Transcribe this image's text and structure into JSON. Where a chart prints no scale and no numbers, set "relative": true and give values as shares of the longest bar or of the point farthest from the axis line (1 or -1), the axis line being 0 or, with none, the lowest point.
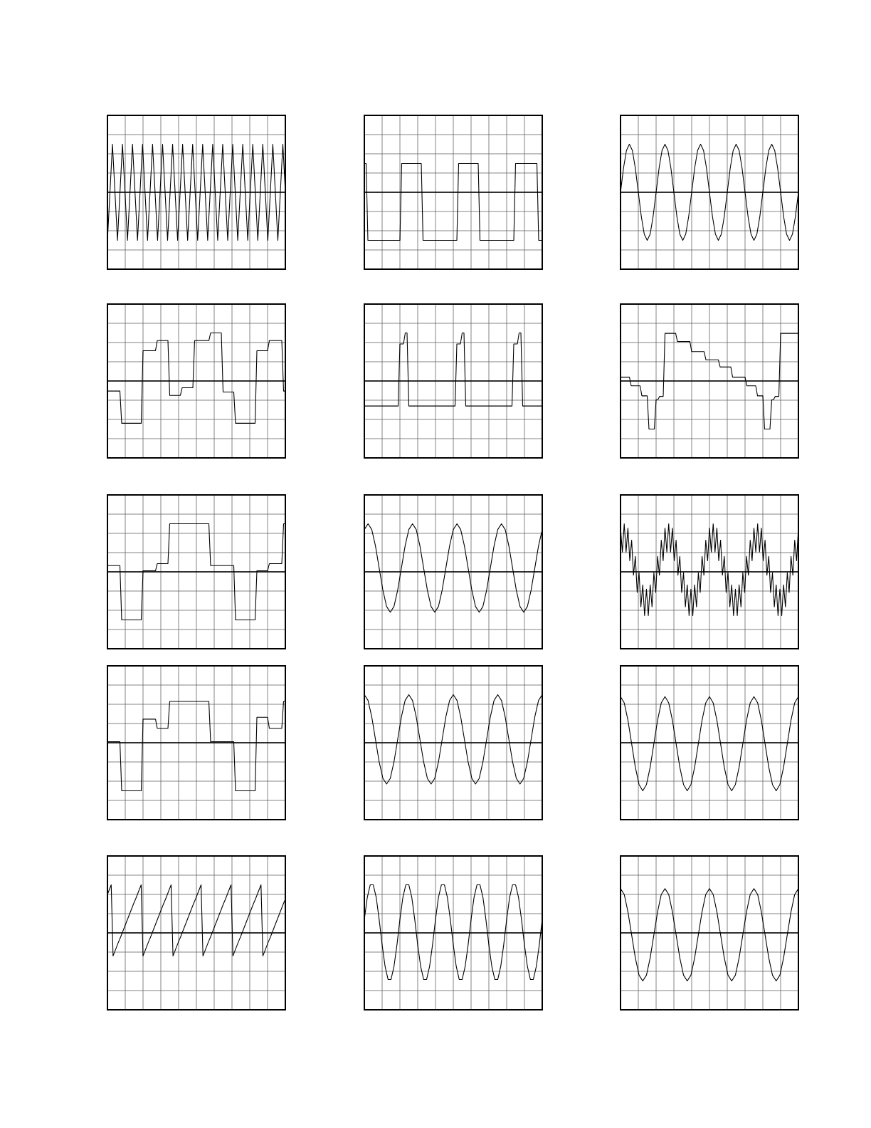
{
  "chart_data": [
    {
      "type": "line",
      "relative": true,
      "grid": true,
      "color": "#000000",
      "categories": [
        null,
        null,
        null,
        null,
        null,
        null,
        null,
        null,
        null,
        null,
        null,
        null,
        null,
        null,
        null,
        null,
        null,
        null,
        null,
        null,
        null,
        null,
        null,
        null,
        null,
        null,
        null,
        null,
        null,
        null,
        null,
        null,
        null,
        null,
        null,
        null,
        null,
        null,
        null,
        null,
        null,
        null,
        null,
        null,
        null,
        null,
        null,
        null,
        null,
        null,
        null,
        null,
        null,
        null,
        null,
        null,
        null,
        null,
        null,
        null,
        null,
        null,
        null,
        null,
        null,
        null,
        null,
        null,
        null,
        null,
        null,
        null
      ],
      "values": [
        -1,
        0,
        1,
        0,
        -1,
        0,
        1,
        0,
        -1,
        0,
        1,
        0,
        -1,
        0,
        1,
        0,
        -1,
        0,
        1,
        0,
        -1,
        0,
        1,
        0,
        -1,
        0,
        1,
        0,
        -1,
        0,
        1,
        0,
        -1,
        0,
        1,
        0,
        -1,
        0,
        1,
        0,
        -1,
        0,
        1,
        0,
        -1,
        0,
        1,
        0,
        -1,
        0,
        1,
        0,
        -1,
        0,
        1,
        0,
        -1,
        0,
        1,
        0,
        -1,
        0,
        1,
        0,
        -1,
        0,
        1,
        0,
        -1,
        0,
        1,
        0
      ]
    },
    {
      "type": "line",
      "relative": true,
      "grid": true,
      "color": "#000000",
      "categories": [
        null,
        null,
        null,
        null,
        null,
        null,
        null,
        null,
        null,
        null,
        null,
        null,
        null,
        null,
        null,
        null,
        null,
        null,
        null,
        null,
        null,
        null,
        null,
        null,
        null,
        null,
        null,
        null,
        null,
        null,
        null,
        null,
        null,
        null,
        null,
        null,
        null,
        null,
        null,
        null,
        null,
        null,
        null,
        null,
        null,
        null,
        null,
        null,
        null,
        null,
        null,
        null,
        null,
        null,
        null,
        null,
        null,
        null,
        null,
        null,
        null,
        null,
        null,
        null,
        null,
        null,
        null,
        null,
        null,
        null,
        null,
        null,
        null,
        null,
        null,
        null,
        null,
        null,
        null,
        null,
        null,
        null,
        null,
        null,
        null,
        null,
        null,
        null,
        null,
        null,
        null,
        null,
        null,
        null,
        null,
        null,
        null,
        null,
        null,
        null,
        null
      ],
      "values": [
        0.6,
        0.6,
        -1,
        -1,
        -1,
        -1,
        -1,
        -1,
        -1,
        -1,
        -1,
        -1,
        -1,
        -1,
        -1,
        -1,
        -1,
        -1,
        -1,
        -1,
        -1,
        0.6,
        0.6,
        0.6,
        0.6,
        0.6,
        0.6,
        0.6,
        0.6,
        0.6,
        0.6,
        0.6,
        0.6,
        -1,
        -1,
        -1,
        -1,
        -1,
        -1,
        -1,
        -1,
        -1,
        -1,
        -1,
        -1,
        -1,
        -1,
        -1,
        -1,
        -1,
        -1,
        -1,
        -1,
        0.6,
        0.6,
        0.6,
        0.6,
        0.6,
        0.6,
        0.6,
        0.6,
        0.6,
        0.6,
        0.6,
        0.6,
        -1,
        -1,
        -1,
        -1,
        -1,
        -1,
        -1,
        -1,
        -1,
        -1,
        -1,
        -1,
        -1,
        -1,
        -1,
        -1,
        -1,
        -1,
        -1,
        -1,
        0.6,
        0.6,
        0.6,
        0.6,
        0.6,
        0.6,
        0.6,
        0.6,
        0.6,
        0.6,
        0.6,
        0.6,
        0.6,
        -1,
        -1,
        -1
      ]
    },
    {
      "type": "line",
      "relative": true,
      "grid": true,
      "color": "#000000",
      "categories": [
        null,
        null,
        null,
        null,
        null,
        null,
        null,
        null,
        null,
        null,
        null,
        null,
        null,
        null,
        null,
        null,
        null,
        null,
        null,
        null,
        null,
        null,
        null,
        null,
        null,
        null,
        null,
        null,
        null,
        null,
        null,
        null,
        null,
        null,
        null,
        null,
        null,
        null,
        null,
        null,
        null,
        null,
        null,
        null,
        null,
        null,
        null,
        null,
        null,
        null,
        null,
        null,
        null,
        null,
        null,
        null,
        null,
        null,
        null,
        null,
        null
      ],
      "values": [
        0,
        0.5,
        0.87,
        1,
        0.87,
        0.5,
        0,
        -0.5,
        -0.87,
        -1,
        -0.87,
        -0.5,
        0,
        0.5,
        0.87,
        1,
        0.87,
        0.5,
        0,
        -0.5,
        -0.87,
        -1,
        -0.87,
        -0.5,
        0,
        0.5,
        0.87,
        1,
        0.87,
        0.5,
        0,
        -0.5,
        -0.87,
        -1,
        -0.87,
        -0.5,
        0,
        0.5,
        0.87,
        1,
        0.87,
        0.5,
        0,
        -0.5,
        -0.87,
        -1,
        -0.87,
        -0.5,
        0,
        0.5,
        0.87,
        1,
        0.87,
        0.5,
        0,
        -0.5,
        -0.87,
        -1,
        -0.87,
        -0.5,
        0
      ]
    },
    {
      "type": "line",
      "relative": true,
      "grid": true,
      "color": "#000000",
      "categories": [
        null,
        null,
        null,
        null,
        null,
        null,
        null,
        null,
        null,
        null,
        null,
        null,
        null,
        null,
        null,
        null,
        null,
        null,
        null,
        null,
        null,
        null,
        null,
        null,
        null,
        null,
        null,
        null,
        null,
        null,
        null,
        null,
        null,
        null,
        null,
        null,
        null,
        null,
        null,
        null,
        null,
        null,
        null,
        null,
        null,
        null,
        null,
        null,
        null,
        null,
        null,
        null,
        null,
        null,
        null,
        null,
        null,
        null,
        null,
        null,
        null,
        null,
        null,
        null,
        null,
        null,
        null,
        null,
        null,
        null,
        null,
        null,
        null,
        null,
        null,
        null,
        null,
        null,
        null,
        null,
        null,
        null,
        null,
        null,
        null,
        null,
        null,
        null,
        null,
        null,
        null,
        null,
        null,
        null,
        null,
        null,
        null,
        null,
        null,
        null,
        null
      ],
      "values": [
        -0.21,
        -0.21,
        -0.21,
        -0.21,
        -0.21,
        -0.21,
        -0.21,
        -0.21,
        -0.88,
        -0.88,
        -0.88,
        -0.88,
        -0.88,
        -0.88,
        -0.88,
        -0.88,
        -0.88,
        -0.88,
        -0.88,
        -0.88,
        0.63,
        0.63,
        0.63,
        0.63,
        0.63,
        0.63,
        0.63,
        0.63,
        0.84,
        0.84,
        0.84,
        0.84,
        0.84,
        0.84,
        0.84,
        -0.3,
        -0.3,
        -0.3,
        -0.3,
        -0.3,
        -0.3,
        -0.3,
        -0.14,
        -0.14,
        -0.14,
        -0.14,
        -0.14,
        -0.14,
        -0.14,
        0.84,
        0.84,
        0.84,
        0.84,
        0.84,
        0.84,
        0.84,
        0.84,
        0.84,
        1,
        1,
        1,
        1,
        1,
        1,
        1,
        -0.23,
        -0.23,
        -0.23,
        -0.23,
        -0.23,
        -0.23,
        -0.23,
        -0.88,
        -0.88,
        -0.88,
        -0.88,
        -0.88,
        -0.88,
        -0.88,
        -0.88,
        -0.88,
        -0.88,
        -0.88,
        -0.88,
        0.63,
        0.63,
        0.63,
        0.63,
        0.63,
        0.63,
        0.63,
        0.84,
        0.84,
        0.84,
        0.84,
        0.84,
        0.84,
        0.84,
        0.84,
        -0.21,
        -0.21
      ]
    },
    {
      "type": "line",
      "relative": true,
      "grid": true,
      "color": "#000000",
      "categories": [
        null,
        null,
        null,
        null,
        null,
        null,
        null,
        null,
        null,
        null,
        null,
        null,
        null,
        null,
        null,
        null,
        null,
        null,
        null,
        null,
        null,
        null,
        null,
        null,
        null,
        null,
        null,
        null,
        null,
        null,
        null,
        null,
        null,
        null,
        null,
        null,
        null,
        null,
        null,
        null,
        null,
        null,
        null,
        null,
        null,
        null,
        null,
        null,
        null,
        null,
        null,
        null,
        null,
        null,
        null,
        null,
        null,
        null,
        null,
        null,
        null,
        null,
        null,
        null,
        null,
        null,
        null,
        null,
        null,
        null,
        null,
        null,
        null,
        null,
        null,
        null,
        null,
        null,
        null,
        null,
        null,
        null,
        null,
        null,
        null,
        null,
        null,
        null,
        null,
        null,
        null,
        null,
        null,
        null,
        null,
        null,
        null,
        null,
        null,
        null,
        null
      ],
      "values": [
        -0.52,
        -0.52,
        -0.52,
        -0.52,
        -0.52,
        -0.52,
        -0.52,
        -0.52,
        -0.52,
        -0.52,
        -0.52,
        -0.52,
        -0.52,
        -0.52,
        -0.52,
        -0.52,
        -0.52,
        -0.52,
        -0.52,
        -0.52,
        0.77,
        0.77,
        0.77,
        1,
        1,
        -0.52,
        -0.52,
        -0.52,
        -0.52,
        -0.52,
        -0.52,
        -0.52,
        -0.52,
        -0.52,
        -0.52,
        -0.52,
        -0.52,
        -0.52,
        -0.52,
        -0.52,
        -0.52,
        -0.52,
        -0.52,
        -0.52,
        -0.52,
        -0.52,
        -0.52,
        -0.52,
        -0.52,
        -0.52,
        -0.52,
        -0.52,
        0.77,
        0.77,
        0.77,
        1,
        1,
        -0.52,
        -0.52,
        -0.52,
        -0.52,
        -0.52,
        -0.52,
        -0.52,
        -0.52,
        -0.52,
        -0.52,
        -0.52,
        -0.52,
        -0.52,
        -0.52,
        -0.52,
        -0.52,
        -0.52,
        -0.52,
        -0.52,
        -0.52,
        -0.52,
        -0.52,
        -0.52,
        -0.52,
        -0.52,
        -0.52,
        -0.52,
        0.77,
        0.77,
        0.77,
        1,
        1,
        -0.52,
        -0.52,
        -0.52,
        -0.52,
        -0.52,
        -0.52,
        -0.52,
        -0.52,
        -0.52,
        -0.52,
        -0.52,
        -0.52
      ]
    },
    {
      "type": "line",
      "relative": true,
      "grid": true,
      "color": "#000000",
      "categories": [
        null,
        null,
        null,
        null,
        null,
        null,
        null,
        null,
        null,
        null,
        null,
        null,
        null,
        null,
        null,
        null,
        null,
        null,
        null,
        null,
        null,
        null,
        null,
        null,
        null,
        null,
        null,
        null,
        null,
        null,
        null,
        null,
        null,
        null,
        null,
        null,
        null,
        null,
        null,
        null,
        null,
        null,
        null,
        null,
        null,
        null,
        null,
        null,
        null,
        null,
        null,
        null,
        null,
        null,
        null,
        null,
        null,
        null,
        null,
        null,
        null,
        null,
        null,
        null,
        null,
        null,
        null,
        null,
        null,
        null,
        null,
        null,
        null,
        null,
        null,
        null,
        null,
        null,
        null,
        null,
        null,
        null,
        null,
        null,
        null,
        null,
        null,
        null,
        null,
        null,
        null,
        null,
        null,
        null,
        null,
        null,
        null,
        null,
        null,
        null,
        null
      ],
      "values": [
        0.08,
        0.08,
        0.08,
        0.08,
        0.08,
        0.08,
        -0.1,
        -0.1,
        -0.1,
        -0.1,
        -0.1,
        -0.1,
        -0.31,
        -0.31,
        -0.31,
        -0.31,
        -1,
        -1,
        -1,
        -1,
        -0.39,
        -0.39,
        -0.32,
        -0.32,
        -0.32,
        0.99,
        0.99,
        0.99,
        0.99,
        0.99,
        0.99,
        0.99,
        0.82,
        0.82,
        0.82,
        0.82,
        0.82,
        0.82,
        0.82,
        0.82,
        0.61,
        0.61,
        0.61,
        0.61,
        0.61,
        0.61,
        0.61,
        0.61,
        0.44,
        0.44,
        0.44,
        0.44,
        0.44,
        0.44,
        0.44,
        0.44,
        0.29,
        0.29,
        0.29,
        0.29,
        0.29,
        0.29,
        0.29,
        0.08,
        0.08,
        0.08,
        0.08,
        0.08,
        0.08,
        0.08,
        0.08,
        -0.1,
        -0.1,
        -0.1,
        -0.1,
        -0.1,
        -0.1,
        -0.31,
        -0.31,
        -0.31,
        -0.31,
        -1,
        -1,
        -1,
        -1,
        -0.39,
        -0.39,
        -0.32,
        -0.32,
        -0.32,
        0.99,
        0.99,
        0.99,
        0.99,
        0.99,
        0.99,
        0.99,
        0.99,
        0.99,
        0.99,
        0.99
      ]
    },
    {
      "type": "line",
      "relative": true,
      "grid": true,
      "color": "#000000",
      "categories": [
        null,
        null,
        null,
        null,
        null,
        null,
        null,
        null,
        null,
        null,
        null,
        null,
        null,
        null,
        null,
        null,
        null,
        null,
        null,
        null,
        null,
        null,
        null,
        null,
        null,
        null,
        null,
        null,
        null,
        null,
        null,
        null,
        null,
        null,
        null,
        null,
        null,
        null,
        null,
        null,
        null,
        null,
        null,
        null,
        null,
        null,
        null,
        null,
        null,
        null,
        null,
        null,
        null,
        null,
        null,
        null,
        null,
        null,
        null,
        null,
        null,
        null,
        null,
        null,
        null,
        null,
        null,
        null,
        null,
        null,
        null,
        null,
        null,
        null,
        null,
        null,
        null,
        null,
        null,
        null,
        null,
        null,
        null,
        null,
        null,
        null,
        null,
        null,
        null,
        null,
        null,
        null,
        null,
        null,
        null,
        null,
        null,
        null,
        null,
        null,
        null
      ],
      "values": [
        0.13,
        0.13,
        0.13,
        0.13,
        0.13,
        0.13,
        0.13,
        0.13,
        -1,
        -1,
        -1,
        -1,
        -1,
        -1,
        -1,
        -1,
        -1,
        -1,
        -1,
        -1,
        0.02,
        0.02,
        0.02,
        0.02,
        0.02,
        0.02,
        0.02,
        0.02,
        0.17,
        0.17,
        0.17,
        0.17,
        0.17,
        0.17,
        0.17,
        1,
        1,
        1,
        1,
        1,
        1,
        1,
        1,
        1,
        1,
        1,
        1,
        1,
        1,
        1,
        1,
        1,
        1,
        1,
        1,
        1,
        1,
        1,
        0.13,
        0.13,
        0.13,
        0.13,
        0.13,
        0.13,
        0.13,
        0.13,
        0.13,
        0.13,
        0.13,
        0.13,
        0.13,
        0.13,
        -1,
        -1,
        -1,
        -1,
        -1,
        -1,
        -1,
        -1,
        -1,
        -1,
        -1,
        -1,
        0.02,
        0.02,
        0.02,
        0.02,
        0.02,
        0.02,
        0.02,
        0.17,
        0.17,
        0.17,
        0.17,
        0.17,
        0.17,
        0.17,
        0.17,
        1,
        1
      ]
    },
    {
      "type": "line",
      "relative": true,
      "grid": true,
      "color": "#000000",
      "categories": [
        null,
        null,
        null,
        null,
        null,
        null,
        null,
        null,
        null,
        null,
        null,
        null,
        null,
        null,
        null,
        null,
        null,
        null,
        null,
        null,
        null,
        null,
        null,
        null,
        null,
        null,
        null,
        null,
        null,
        null,
        null,
        null,
        null,
        null,
        null,
        null,
        null,
        null,
        null,
        null,
        null,
        null,
        null,
        null,
        null,
        null,
        null,
        null,
        null
      ],
      "values": [
        0.88,
        1,
        0.88,
        0.54,
        0.08,
        -0.38,
        -0.72,
        -0.84,
        -0.72,
        -0.38,
        0.08,
        0.54,
        0.88,
        1,
        0.88,
        0.54,
        0.08,
        -0.38,
        -0.72,
        -0.84,
        -0.72,
        -0.38,
        0.08,
        0.54,
        0.88,
        1,
        0.88,
        0.54,
        0.08,
        -0.38,
        -0.72,
        -0.84,
        -0.72,
        -0.38,
        0.08,
        0.54,
        0.88,
        1,
        0.88,
        0.54,
        0.08,
        -0.38,
        -0.72,
        -0.84,
        -0.72,
        -0.38,
        0.08,
        0.54,
        0.88
      ]
    },
    {
      "type": "line",
      "relative": true,
      "grid": true,
      "color": "#000000",
      "categories": [
        null,
        null,
        null,
        null,
        null,
        null,
        null,
        null,
        null,
        null,
        null,
        null,
        null,
        null,
        null,
        null,
        null,
        null,
        null,
        null,
        null,
        null,
        null,
        null,
        null,
        null,
        null,
        null,
        null,
        null,
        null,
        null,
        null,
        null,
        null,
        null,
        null,
        null,
        null,
        null,
        null,
        null,
        null,
        null,
        null,
        null,
        null,
        null,
        null,
        null,
        null,
        null,
        null,
        null,
        null,
        null,
        null,
        null,
        null,
        null,
        null,
        null,
        null,
        null,
        null,
        null,
        null,
        null,
        null,
        null,
        null,
        null,
        null,
        null,
        null,
        null,
        null,
        null,
        null,
        null,
        null,
        null,
        null,
        null,
        null,
        null,
        null,
        null,
        null,
        null,
        null,
        null,
        null,
        null,
        null,
        null,
        null
      ],
      "values": [
        0.91,
        0.41,
        1,
        0.41,
        0.91,
        0.23,
        0.66,
        -0.07,
        0.32,
        -0.43,
        -0.02,
        -0.73,
        -0.27,
        -0.91,
        -0.36,
        -0.91,
        -0.27,
        -0.73,
        -0.02,
        -0.43,
        0.32,
        -0.07,
        0.66,
        0.23,
        0.91,
        0.41,
        1,
        0.41,
        0.91,
        0.23,
        0.66,
        -0.07,
        0.32,
        -0.43,
        -0.02,
        -0.73,
        -0.27,
        -0.91,
        -0.36,
        -0.91,
        -0.27,
        -0.73,
        -0.02,
        -0.43,
        0.32,
        -0.07,
        0.66,
        0.23,
        0.91,
        0.41,
        1,
        0.41,
        0.91,
        0.23,
        0.66,
        -0.07,
        0.32,
        -0.43,
        -0.02,
        -0.73,
        -0.27,
        -0.91,
        -0.36,
        -0.91,
        -0.27,
        -0.73,
        -0.02,
        -0.43,
        0.32,
        -0.07,
        0.66,
        0.23,
        0.91,
        0.41,
        1,
        0.41,
        0.91,
        0.23,
        0.66,
        -0.07,
        0.32,
        -0.43,
        -0.02,
        -0.73,
        -0.27,
        -0.91,
        -0.36,
        -0.91,
        -0.27,
        -0.73,
        -0.02,
        -0.43,
        0.32,
        -0.07,
        0.66,
        0.23,
        0.91
      ]
    },
    {
      "type": "line",
      "relative": true,
      "grid": true,
      "color": "#000000",
      "categories": [
        null,
        null,
        null,
        null,
        null,
        null,
        null,
        null,
        null,
        null,
        null,
        null,
        null,
        null,
        null,
        null,
        null,
        null,
        null,
        null,
        null,
        null,
        null,
        null,
        null,
        null,
        null,
        null,
        null,
        null,
        null,
        null,
        null,
        null,
        null,
        null,
        null,
        null,
        null,
        null,
        null,
        null,
        null,
        null,
        null,
        null,
        null,
        null,
        null,
        null,
        null,
        null,
        null,
        null,
        null,
        null,
        null,
        null,
        null,
        null,
        null,
        null,
        null,
        null,
        null,
        null,
        null,
        null,
        null,
        null,
        null,
        null,
        null,
        null,
        null,
        null,
        null,
        null,
        null,
        null,
        null,
        null,
        null,
        null,
        null,
        null,
        null,
        null,
        null,
        null,
        null,
        null,
        null,
        null,
        null,
        null,
        null,
        null,
        null,
        null,
        null
      ],
      "values": [
        0.02,
        0.02,
        0.02,
        0.02,
        0.02,
        0.02,
        0.02,
        0.02,
        -1,
        -1,
        -1,
        -1,
        -1,
        -1,
        -1,
        -1,
        -1,
        -1,
        -1,
        -1,
        0.49,
        0.49,
        0.49,
        0.49,
        0.49,
        0.49,
        0.49,
        0.49,
        0.3,
        0.3,
        0.3,
        0.3,
        0.3,
        0.3,
        0.3,
        0.86,
        0.86,
        0.86,
        0.86,
        0.86,
        0.86,
        0.86,
        0.86,
        0.86,
        0.86,
        0.86,
        0.86,
        0.86,
        0.86,
        0.86,
        0.86,
        0.86,
        0.86,
        0.86,
        0.86,
        0.86,
        0.86,
        0.86,
        0.02,
        0.02,
        0.02,
        0.02,
        0.02,
        0.02,
        0.02,
        0.02,
        0.02,
        0.02,
        0.02,
        0.02,
        0.02,
        0.02,
        -1,
        -1,
        -1,
        -1,
        -1,
        -1,
        -1,
        -1,
        -1,
        -1,
        -1,
        -1,
        0.53,
        0.53,
        0.53,
        0.53,
        0.53,
        0.53,
        0.53,
        0.3,
        0.3,
        0.3,
        0.3,
        0.3,
        0.3,
        0.3,
        0.3,
        0.86,
        0.86
      ]
    },
    {
      "type": "line",
      "relative": true,
      "grid": true,
      "color": "#000000",
      "categories": [
        null,
        null,
        null,
        null,
        null,
        null,
        null,
        null,
        null,
        null,
        null,
        null,
        null,
        null,
        null,
        null,
        null,
        null,
        null,
        null,
        null,
        null,
        null,
        null,
        null,
        null,
        null,
        null,
        null,
        null,
        null,
        null,
        null,
        null,
        null,
        null,
        null,
        null,
        null,
        null,
        null,
        null,
        null,
        null,
        null,
        null,
        null,
        null,
        null
      ],
      "values": [
        1,
        0.88,
        0.54,
        0.07,
        -0.4,
        -0.74,
        -0.86,
        -0.74,
        -0.4,
        0.07,
        0.54,
        0.88,
        1,
        0.88,
        0.54,
        0.07,
        -0.4,
        -0.74,
        -0.86,
        -0.74,
        -0.4,
        0.07,
        0.54,
        0.88,
        1,
        0.88,
        0.54,
        0.07,
        -0.4,
        -0.74,
        -0.86,
        -0.74,
        -0.4,
        0.07,
        0.54,
        0.88,
        1,
        0.88,
        0.54,
        0.07,
        -0.4,
        -0.74,
        -0.86,
        -0.74,
        -0.4,
        0.07,
        0.54,
        0.88,
        1
      ]
    },
    {
      "type": "line",
      "relative": true,
      "grid": true,
      "color": "#000000",
      "categories": [
        null,
        null,
        null,
        null,
        null,
        null,
        null,
        null,
        null,
        null,
        null,
        null,
        null,
        null,
        null,
        null,
        null,
        null,
        null,
        null,
        null,
        null,
        null,
        null,
        null,
        null,
        null,
        null,
        null,
        null,
        null,
        null,
        null,
        null,
        null,
        null,
        null,
        null,
        null,
        null,
        null,
        null,
        null,
        null,
        null,
        null,
        null,
        null,
        null
      ],
      "values": [
        0.96,
        0.83,
        0.47,
        -0.02,
        -0.51,
        -0.87,
        -1,
        -0.87,
        -0.51,
        -0.02,
        0.47,
        0.83,
        0.96,
        0.83,
        0.47,
        -0.02,
        -0.51,
        -0.87,
        -1,
        -0.87,
        -0.51,
        -0.02,
        0.47,
        0.83,
        0.96,
        0.83,
        0.47,
        -0.02,
        -0.51,
        -0.87,
        -1,
        -0.87,
        -0.51,
        -0.02,
        0.47,
        0.83,
        0.96,
        0.83,
        0.47,
        -0.02,
        -0.51,
        -0.87,
        -1,
        -0.87,
        -0.51,
        -0.02,
        0.47,
        0.83,
        0.96
      ]
    },
    {
      "type": "line",
      "relative": true,
      "grid": true,
      "color": "#000000",
      "categories": [
        null,
        null,
        null,
        null,
        null,
        null,
        null,
        null,
        null,
        null,
        null,
        null,
        null,
        null,
        null,
        null,
        null,
        null,
        null,
        null,
        null,
        null,
        null,
        null,
        null,
        null,
        null,
        null,
        null,
        null,
        null,
        null,
        null,
        null,
        null,
        null,
        null,
        null,
        null,
        null,
        null,
        null,
        null,
        null,
        null,
        null,
        null,
        null,
        null,
        null,
        null,
        null,
        null,
        null,
        null,
        null,
        null,
        null,
        null,
        null,
        null,
        null,
        null,
        null,
        null,
        null,
        null,
        null,
        null,
        null,
        null,
        null,
        null,
        null,
        null,
        null,
        null,
        null,
        null,
        null,
        null,
        null,
        null,
        null,
        null,
        null,
        null,
        null,
        null,
        null,
        null,
        null,
        null,
        null,
        null,
        null
      ],
      "values": [
        0.8,
        0.9,
        1,
        -0.48,
        -0.38,
        -0.28,
        -0.18,
        -0.09,
        0.01,
        0.11,
        0.21,
        0.31,
        0.41,
        0.51,
        0.61,
        0.7,
        0.8,
        0.9,
        1,
        -0.48,
        -0.38,
        -0.28,
        -0.18,
        -0.09,
        0.01,
        0.11,
        0.21,
        0.31,
        0.41,
        0.51,
        0.61,
        0.7,
        0.8,
        0.9,
        1,
        -0.48,
        -0.38,
        -0.28,
        -0.18,
        -0.09,
        0.01,
        0.11,
        0.21,
        0.31,
        0.41,
        0.51,
        0.61,
        0.7,
        0.8,
        0.9,
        1,
        -0.48,
        -0.38,
        -0.28,
        -0.18,
        -0.09,
        0.01,
        0.11,
        0.21,
        0.31,
        0.41,
        0.51,
        0.61,
        0.7,
        0.8,
        0.9,
        1,
        -0.48,
        -0.38,
        -0.28,
        -0.18,
        -0.09,
        0.01,
        0.11,
        0.21,
        0.31,
        0.41,
        0.51,
        0.61,
        0.7,
        0.8,
        0.9,
        1,
        -0.48,
        -0.38,
        -0.28,
        -0.18,
        -0.09,
        0.01,
        0.11,
        0.21,
        0.31,
        0.41,
        0.51,
        0.61,
        0.7
      ]
    },
    {
      "type": "line",
      "relative": true,
      "grid": true,
      "color": "#000000",
      "categories": [
        null,
        null,
        null,
        null,
        null,
        null,
        null,
        null,
        null,
        null,
        null,
        null,
        null,
        null,
        null,
        null,
        null,
        null,
        null,
        null,
        null,
        null,
        null,
        null,
        null,
        null,
        null,
        null,
        null,
        null,
        null,
        null,
        null,
        null,
        null,
        null,
        null,
        null,
        null,
        null,
        null,
        null,
        null,
        null,
        null,
        null,
        null,
        null,
        null,
        null,
        null,
        null,
        null,
        null,
        null,
        null,
        null,
        null,
        null,
        null,
        null
      ],
      "values": [
        0.28,
        0.74,
        1,
        1,
        0.74,
        0.28,
        -0.25,
        -0.7,
        -0.97,
        -0.97,
        -0.7,
        -0.25,
        0.28,
        0.74,
        1,
        1,
        0.74,
        0.28,
        -0.25,
        -0.7,
        -0.97,
        -0.97,
        -0.7,
        -0.25,
        0.28,
        0.74,
        1,
        1,
        0.74,
        0.28,
        -0.25,
        -0.7,
        -0.97,
        -0.97,
        -0.7,
        -0.25,
        0.28,
        0.74,
        1,
        1,
        0.74,
        0.28,
        -0.25,
        -0.7,
        -0.97,
        -0.97,
        -0.7,
        -0.25,
        0.28,
        0.74,
        1,
        1,
        0.74,
        0.28,
        -0.25,
        -0.7,
        -0.97,
        -0.97,
        -0.7,
        -0.25,
        0.28
      ]
    },
    {
      "type": "line",
      "relative": true,
      "grid": true,
      "color": "#000000",
      "categories": [
        null,
        null,
        null,
        null,
        null,
        null,
        null,
        null,
        null,
        null,
        null,
        null,
        null,
        null,
        null,
        null,
        null,
        null,
        null,
        null,
        null,
        null,
        null,
        null,
        null,
        null,
        null,
        null,
        null,
        null,
        null,
        null,
        null,
        null,
        null,
        null,
        null,
        null,
        null,
        null,
        null,
        null,
        null,
        null,
        null,
        null,
        null,
        null,
        null
      ],
      "values": [
        0.92,
        0.8,
        0.44,
        -0.04,
        -0.52,
        -0.88,
        -1,
        -0.88,
        -0.52,
        -0.04,
        0.44,
        0.8,
        0.92,
        0.8,
        0.44,
        -0.04,
        -0.52,
        -0.88,
        -1,
        -0.88,
        -0.52,
        -0.04,
        0.44,
        0.8,
        0.92,
        0.8,
        0.44,
        -0.04,
        -0.52,
        -0.88,
        -1,
        -0.88,
        -0.52,
        -0.04,
        0.44,
        0.8,
        0.92,
        0.8,
        0.44,
        -0.04,
        -0.52,
        -0.88,
        -1,
        -0.88,
        -0.52,
        -0.04,
        0.44,
        0.8,
        0.92
      ]
    }
  ]
}
